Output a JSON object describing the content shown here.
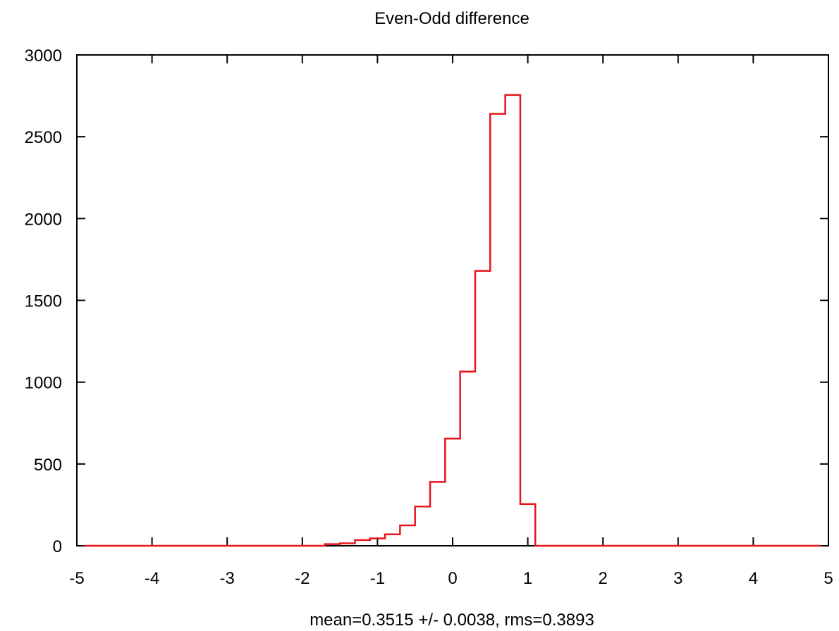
{
  "chart_data": {
    "type": "histogram",
    "title": "Even-Odd difference",
    "xlabel": "mean=0.3515 +/- 0.0038, rms=0.3893",
    "ylabel": "",
    "xlim": [
      -5,
      5
    ],
    "ylim": [
      0,
      3000
    ],
    "x_ticks": [
      "-5",
      "-4",
      "-3",
      "-2",
      "-1",
      "0",
      "1",
      "2",
      "3",
      "4",
      "5"
    ],
    "y_ticks": [
      "0",
      "500",
      "1000",
      "1500",
      "2000",
      "2500",
      "3000"
    ],
    "bin_edges": [
      -4.9,
      -1.7,
      -1.5,
      -1.3,
      -1.1,
      -0.9,
      -0.7,
      -0.5,
      -0.3,
      -0.1,
      0.1,
      0.3,
      0.5,
      0.7,
      0.9,
      1.1,
      4.9
    ],
    "counts": [
      0,
      10,
      15,
      35,
      45,
      70,
      125,
      240,
      390,
      655,
      1065,
      1680,
      2640,
      2755,
      255,
      0
    ],
    "line_color": "#e8141e",
    "grid": false
  }
}
